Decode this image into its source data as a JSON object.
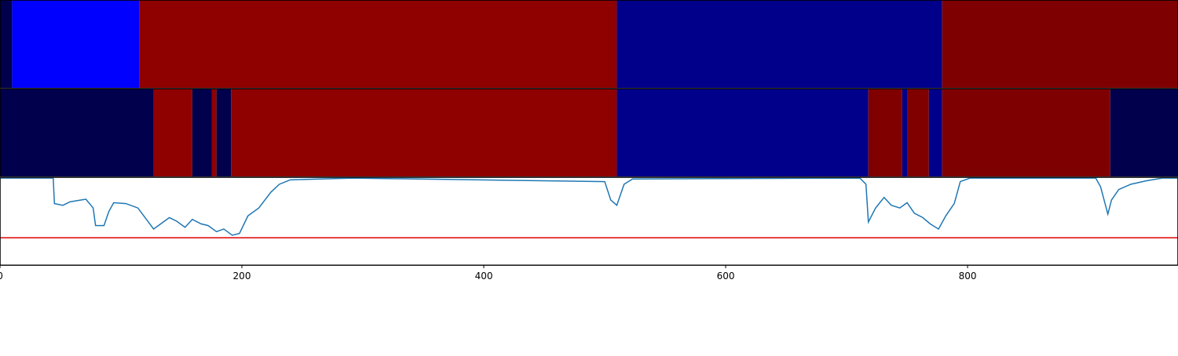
{
  "chart_data": [
    {
      "type": "segments",
      "xlim": [
        0,
        974
      ],
      "segments": [
        {
          "start": 0,
          "end": 10,
          "color": "#00004c"
        },
        {
          "start": 10,
          "end": 115,
          "color": "#0000ff"
        },
        {
          "start": 115,
          "end": 510,
          "color": "#8f0000"
        },
        {
          "start": 510,
          "end": 779,
          "color": "#00008a"
        },
        {
          "start": 779,
          "end": 974,
          "color": "#7f0000"
        }
      ]
    },
    {
      "type": "segments",
      "xlim": [
        0,
        974
      ],
      "segments": [
        {
          "start": 0,
          "end": 127,
          "color": "#00004c"
        },
        {
          "start": 127,
          "end": 159,
          "color": "#8f0000"
        },
        {
          "start": 159,
          "end": 175,
          "color": "#00004c"
        },
        {
          "start": 175,
          "end": 179,
          "color": "#8f0000"
        },
        {
          "start": 179,
          "end": 191,
          "color": "#00004c"
        },
        {
          "start": 191,
          "end": 510,
          "color": "#8f0000"
        },
        {
          "start": 510,
          "end": 718,
          "color": "#00008a"
        },
        {
          "start": 718,
          "end": 746,
          "color": "#800000"
        },
        {
          "start": 746,
          "end": 750,
          "color": "#00008a"
        },
        {
          "start": 750,
          "end": 768,
          "color": "#800000"
        },
        {
          "start": 768,
          "end": 779,
          "color": "#00008a"
        },
        {
          "start": 779,
          "end": 918,
          "color": "#7f0000"
        },
        {
          "start": 918,
          "end": 974,
          "color": "#00004c"
        }
      ]
    },
    {
      "type": "line",
      "xlim": [
        0,
        974
      ],
      "ylim": [
        0,
        1
      ],
      "xticks": [
        0,
        200,
        400,
        600,
        800
      ],
      "color": "#1f77b4",
      "hline": {
        "value": 0.31,
        "color": "#e00000"
      },
      "x": [
        0,
        44,
        45,
        52,
        58,
        71,
        77,
        79,
        86,
        90,
        94,
        104,
        114,
        120,
        127,
        133,
        140,
        146,
        153,
        159,
        166,
        172,
        179,
        185,
        192,
        198,
        205,
        214,
        224,
        231,
        240,
        292,
        500,
        505,
        510,
        516,
        523,
        711,
        716,
        718,
        724,
        731,
        737,
        744,
        750,
        756,
        763,
        769,
        776,
        782,
        789,
        794,
        802,
        906,
        910,
        916,
        919,
        925,
        935,
        948,
        961,
        974
      ],
      "values": [
        0.99,
        0.99,
        0.7,
        0.68,
        0.72,
        0.75,
        0.65,
        0.45,
        0.45,
        0.61,
        0.71,
        0.7,
        0.65,
        0.54,
        0.41,
        0.47,
        0.54,
        0.5,
        0.43,
        0.52,
        0.47,
        0.45,
        0.38,
        0.41,
        0.34,
        0.36,
        0.56,
        0.65,
        0.83,
        0.92,
        0.97,
        0.99,
        0.95,
        0.74,
        0.68,
        0.92,
        0.98,
        0.99,
        0.92,
        0.49,
        0.65,
        0.77,
        0.68,
        0.65,
        0.71,
        0.59,
        0.54,
        0.47,
        0.41,
        0.56,
        0.7,
        0.95,
        0.99,
        0.99,
        0.89,
        0.58,
        0.74,
        0.86,
        0.92,
        0.96,
        0.99,
        0.99
      ]
    }
  ]
}
